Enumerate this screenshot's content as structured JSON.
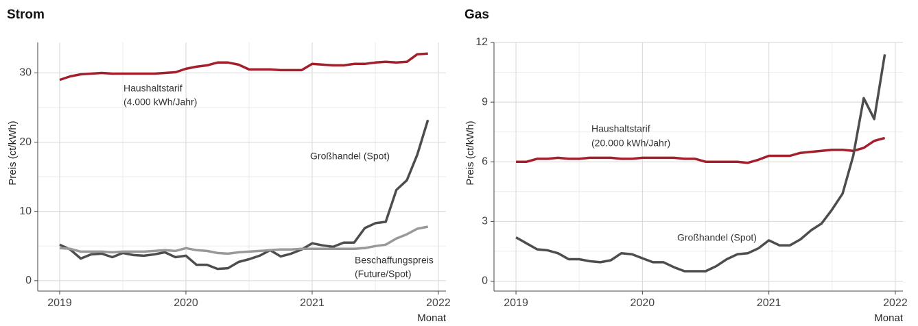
{
  "chart_data": [
    {
      "type": "line",
      "title": "Strom",
      "ylabel": "Preis (ct/kWh)",
      "xlabel": "Monat",
      "x": [
        2019,
        2019.083,
        2019.167,
        2019.25,
        2019.333,
        2019.417,
        2019.5,
        2019.583,
        2019.667,
        2019.75,
        2019.833,
        2019.917,
        2020,
        2020.083,
        2020.167,
        2020.25,
        2020.333,
        2020.417,
        2020.5,
        2020.583,
        2020.667,
        2020.75,
        2020.833,
        2020.917,
        2021,
        2021.083,
        2021.167,
        2021.25,
        2021.333,
        2021.417,
        2021.5,
        2021.583,
        2021.667,
        2021.75,
        2021.833,
        2021.917
      ],
      "xlim": [
        2018.826,
        2022.06
      ],
      "xticks": [
        2019,
        2020,
        2021,
        2022
      ],
      "ylim": [
        -1.5,
        34.4
      ],
      "yticks": [
        0,
        10,
        20,
        30
      ],
      "grid": true,
      "series": [
        {
          "name": "Haushaltstarif",
          "color": "#a31f2b",
          "values": [
            29.0,
            29.5,
            29.8,
            29.9,
            30.0,
            29.9,
            29.9,
            29.9,
            29.9,
            29.9,
            30.0,
            30.1,
            30.6,
            30.9,
            31.1,
            31.5,
            31.5,
            31.2,
            30.5,
            30.5,
            30.5,
            30.4,
            30.4,
            30.4,
            31.3,
            31.2,
            31.1,
            31.1,
            31.3,
            31.3,
            31.5,
            31.6,
            31.5,
            31.6,
            32.7,
            32.8
          ]
        },
        {
          "name": "Großhandel (Spot)",
          "color": "#4d4d4d",
          "values": [
            5.2,
            4.5,
            3.2,
            3.8,
            3.9,
            3.4,
            4.0,
            3.7,
            3.6,
            3.8,
            4.1,
            3.4,
            3.6,
            2.3,
            2.3,
            1.7,
            1.8,
            2.7,
            3.1,
            3.6,
            4.4,
            3.5,
            3.9,
            4.5,
            5.4,
            5.1,
            4.9,
            5.5,
            5.5,
            7.6,
            8.3,
            8.5,
            13.1,
            14.5,
            18.2,
            23.2
          ]
        },
        {
          "name": "Beschaffungspreis",
          "color": "#999999",
          "values": [
            4.7,
            4.6,
            4.2,
            4.2,
            4.2,
            4.1,
            4.2,
            4.2,
            4.2,
            4.3,
            4.4,
            4.3,
            4.7,
            4.4,
            4.3,
            4.0,
            3.9,
            4.1,
            4.2,
            4.3,
            4.4,
            4.5,
            4.5,
            4.6,
            4.6,
            4.6,
            4.6,
            4.6,
            4.6,
            4.7,
            5.0,
            5.2,
            6.1,
            6.7,
            7.5,
            7.8
          ]
        }
      ],
      "annotations": [
        "(4.000 kWh/Jahr)",
        "(Future/Spot)"
      ]
    },
    {
      "type": "line",
      "title": "Gas",
      "ylabel": "Preis (ct/kWh)",
      "xlabel": "Monat",
      "x": [
        2019,
        2019.083,
        2019.167,
        2019.25,
        2019.333,
        2019.417,
        2019.5,
        2019.583,
        2019.667,
        2019.75,
        2019.833,
        2019.917,
        2020,
        2020.083,
        2020.167,
        2020.25,
        2020.333,
        2020.417,
        2020.5,
        2020.583,
        2020.667,
        2020.75,
        2020.833,
        2020.917,
        2021,
        2021.083,
        2021.167,
        2021.25,
        2021.333,
        2021.417,
        2021.5,
        2021.583,
        2021.667,
        2021.75,
        2021.833,
        2021.917
      ],
      "xlim": [
        2018.826,
        2022.06
      ],
      "xticks": [
        2019,
        2020,
        2021,
        2022
      ],
      "ylim": [
        -0.5,
        12
      ],
      "yticks": [
        0,
        3,
        6,
        9,
        12
      ],
      "grid": true,
      "series": [
        {
          "name": "Haushaltstarif",
          "color": "#a31f2b",
          "values": [
            6.0,
            6.0,
            6.15,
            6.15,
            6.2,
            6.15,
            6.15,
            6.2,
            6.2,
            6.2,
            6.15,
            6.15,
            6.2,
            6.2,
            6.2,
            6.2,
            6.15,
            6.15,
            6.0,
            6.0,
            6.0,
            6.0,
            5.95,
            6.1,
            6.3,
            6.3,
            6.3,
            6.45,
            6.5,
            6.55,
            6.6,
            6.6,
            6.55,
            6.7,
            7.05,
            7.2
          ]
        },
        {
          "name": "Großhandel (Spot)",
          "color": "#4d4d4d",
          "values": [
            2.2,
            1.9,
            1.6,
            1.55,
            1.4,
            1.1,
            1.1,
            1.0,
            0.95,
            1.05,
            1.4,
            1.35,
            1.15,
            0.95,
            0.95,
            0.7,
            0.5,
            0.5,
            0.5,
            0.75,
            1.1,
            1.35,
            1.4,
            1.65,
            2.05,
            1.8,
            1.8,
            2.1,
            2.55,
            2.9,
            3.6,
            4.4,
            6.3,
            9.2,
            8.15,
            11.4
          ]
        }
      ],
      "annotations": [
        "(20.000 kWh/Jahr)"
      ]
    }
  ]
}
